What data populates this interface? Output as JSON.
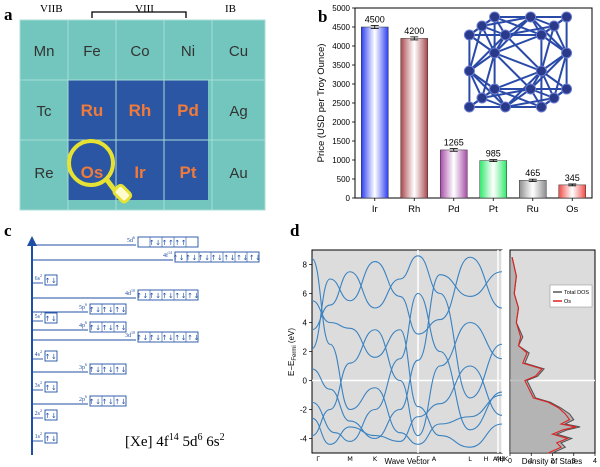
{
  "panel_labels": {
    "a": "a",
    "b": "b",
    "c": "c",
    "d": "d"
  },
  "periodic_table": {
    "group_labels": {
      "left": "VIIB",
      "middle": "VIII",
      "right": "IB"
    },
    "rows": [
      [
        "Mn",
        "Fe",
        "Co",
        "Ni",
        "Cu"
      ],
      [
        "Tc",
        "Ru",
        "Rh",
        "Pd",
        "Ag"
      ],
      [
        "Re",
        "Os",
        "Ir",
        "Pt",
        "Au"
      ]
    ],
    "highlighted": [
      "Ru",
      "Rh",
      "Pd",
      "Os",
      "Ir",
      "Pt"
    ],
    "magnified": "Os",
    "colors": {
      "cell": "#72c6be",
      "highlight_bg": "#2a56a4",
      "highlight_text": "#f07a3a",
      "magnifier": "#e6e234"
    }
  },
  "chart_data": [
    {
      "type": "bar",
      "panel": "b",
      "categories": [
        "Ir",
        "Rh",
        "Pd",
        "Pt",
        "Ru",
        "Os"
      ],
      "values": [
        4500,
        4200,
        1265,
        985,
        465,
        345
      ],
      "data_labels": [
        "4500",
        "4200",
        "1265",
        "985",
        "465",
        "345"
      ],
      "error": [
        40,
        40,
        35,
        25,
        30,
        25
      ],
      "bar_colors": [
        "#2a3cf0",
        "#a8454a",
        "#a64aa6",
        "#2de86a",
        "#8c8c8c",
        "#f04a45"
      ],
      "ylabel": "Price (USD per Troy Ounce)",
      "ylim": [
        0,
        5000
      ],
      "yticks": [
        "0",
        "500",
        "1000",
        "1500",
        "2000",
        "2500",
        "3000",
        "3500",
        "4000",
        "4500",
        "5000"
      ],
      "grid": false
    },
    {
      "type": "line",
      "panel": "d",
      "subtype": "band_structure",
      "xlabel": "Wave Vector",
      "ylabel": "E−E",
      "ylabel_sub": "Fermi",
      "ylabel_unit": " (eV)",
      "ylim": [
        -5,
        9
      ],
      "yticks": [
        "-4",
        "-2",
        "0",
        "2",
        "4",
        "6",
        "8"
      ],
      "kpoints": [
        "Γ",
        "M",
        "K",
        "Γ",
        "A",
        "L",
        "H",
        "A|L",
        "M|K",
        "H"
      ],
      "fermi_level": 0
    },
    {
      "type": "line",
      "panel": "d",
      "subtype": "density_of_states",
      "xlabel": "Density of States",
      "xlim": [
        0,
        4
      ],
      "xticks": [
        "0",
        "1",
        "2",
        "3",
        "4"
      ],
      "legend": [
        "Total DOS",
        "Os"
      ],
      "legend_position": "top-right",
      "series": [
        {
          "name": "Total DOS",
          "color": "#555555",
          "x": [
            0.1,
            0.3,
            0.2,
            0.4,
            0.3,
            0.6,
            0.4,
            0.9,
            0.7,
            1.6,
            1.3,
            0.8,
            1.0,
            1.2,
            1.9,
            2.4,
            2.8,
            3.0,
            2.6,
            3.3,
            2.7,
            2.2,
            2.9,
            2.4,
            2.6,
            2.0
          ],
          "y": [
            8.5,
            7.2,
            6.0,
            5.0,
            4.0,
            3.0,
            2.4,
            1.9,
            1.2,
            0.8,
            0.3,
            0.0,
            -0.6,
            -1.2,
            -1.5,
            -1.9,
            -2.3,
            -2.7,
            -3.0,
            -3.2,
            -3.4,
            -3.7,
            -4.0,
            -4.3,
            -4.6,
            -5.0
          ]
        },
        {
          "name": "Os",
          "color": "#e02020",
          "x": [
            0.1,
            0.3,
            0.2,
            0.4,
            0.3,
            0.5,
            0.4,
            0.8,
            0.6,
            1.5,
            1.2,
            0.7,
            0.9,
            1.1,
            1.8,
            2.3,
            2.6,
            2.8,
            2.4,
            3.1,
            2.5,
            2.0,
            2.7,
            2.2,
            2.4,
            1.8
          ],
          "y": [
            8.5,
            7.2,
            6.0,
            5.0,
            4.0,
            3.0,
            2.4,
            1.9,
            1.2,
            0.8,
            0.3,
            0.0,
            -0.6,
            -1.2,
            -1.5,
            -1.9,
            -2.3,
            -2.7,
            -3.0,
            -3.2,
            -3.4,
            -3.7,
            -4.0,
            -4.3,
            -4.6,
            -5.0
          ]
        }
      ]
    }
  ],
  "orbital_diagram": {
    "levels": [
      {
        "label": "1s",
        "sup": "2",
        "arrows": "↑↓",
        "boxes": 1
      },
      {
        "label": "2s",
        "sup": "2",
        "arrows": "↑↓",
        "boxes": 1
      },
      {
        "label": "2p",
        "sup": "6",
        "arrows": "↑↓↑↓↑↓",
        "boxes": 3
      },
      {
        "label": "3s",
        "sup": "2",
        "arrows": "↑↓",
        "boxes": 1
      },
      {
        "label": "3p",
        "sup": "6",
        "arrows": "↑↓↑↓↑↓",
        "boxes": 3
      },
      {
        "label": "4s",
        "sup": "2",
        "arrows": "↑↓",
        "boxes": 1
      },
      {
        "label": "3d",
        "sup": "10",
        "arrows": "↑↓↑↓↑↓↑↓↑↓",
        "boxes": 5
      },
      {
        "label": "4p",
        "sup": "6",
        "arrows": "↑↓↑↓↑↓",
        "boxes": 3
      },
      {
        "label": "5s",
        "sup": "2",
        "arrows": "↑↓",
        "boxes": 1
      },
      {
        "label": "4d",
        "sup": "10",
        "arrows": "↑↓↑↓↑↓↑↓↑↓",
        "boxes": 5
      },
      {
        "label": "5p",
        "sup": "6",
        "arrows": "↑↓↑↓↑↓",
        "boxes": 3
      },
      {
        "label": "6s",
        "sup": "2",
        "arrows": "↑↓",
        "boxes": 1
      },
      {
        "label": "4f",
        "sup": "14",
        "arrows": "↑↓↑↓↑↓↑↓↑↓↑↓↑↓",
        "boxes": 7
      },
      {
        "label": "5d",
        "sup": "6",
        "arrows": "↑↓↑↑↑↑",
        "boxes": 5
      }
    ],
    "config": {
      "prefix": "[Xe] 4f",
      "sup1": "14",
      "mid1": " 5d",
      "sup2": "6",
      "mid2": " 6s",
      "sup3": "2"
    },
    "color": "#1f4fa3"
  }
}
